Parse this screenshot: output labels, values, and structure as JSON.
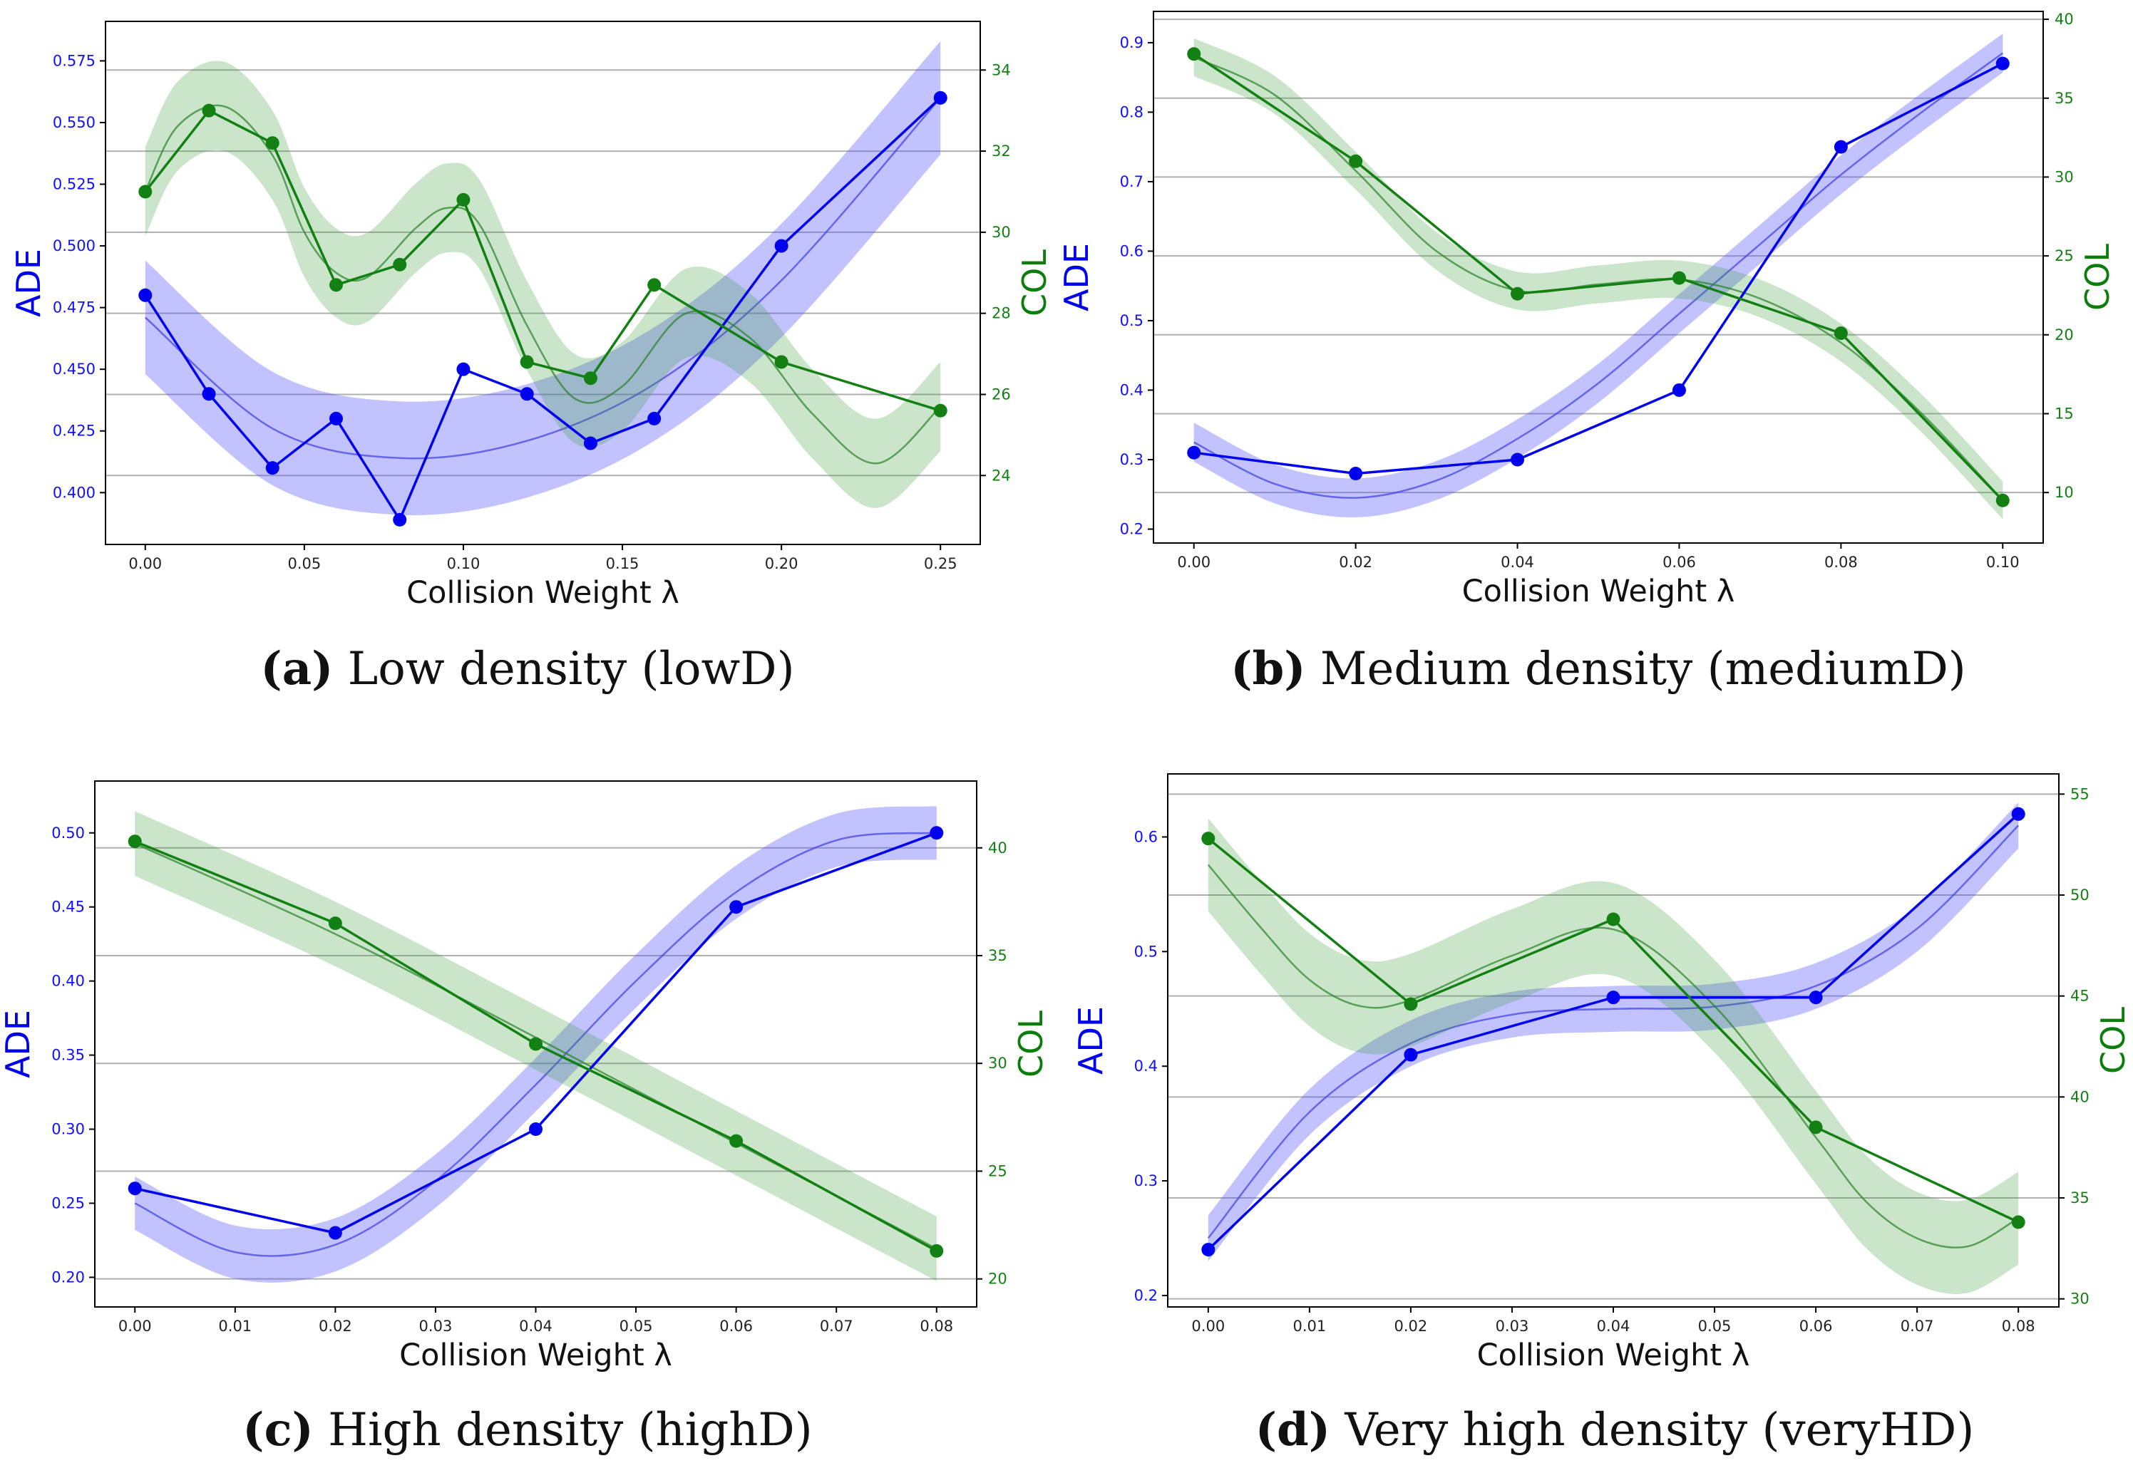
{
  "chart_data": [
    {
      "type": "line",
      "id": "a",
      "caption_tag": "(a)",
      "caption_text": "Low density (lowD)",
      "xlabel": "Collision Weight λ",
      "ylabel_left": "ADE",
      "ylabel_right": "COL",
      "xlim": [
        -0.0125,
        0.2625
      ],
      "xticks": [
        0.0,
        0.05,
        0.1,
        0.15,
        0.2,
        0.25
      ],
      "xtick_labels": [
        "0.00",
        "0.05",
        "0.10",
        "0.15",
        "0.20",
        "0.25"
      ],
      "ylim_left": [
        0.379,
        0.591
      ],
      "yticks_left": [
        0.4,
        0.425,
        0.45,
        0.475,
        0.5,
        0.525,
        0.55,
        0.575
      ],
      "ytick_labels_left": [
        "0.400",
        "0.425",
        "0.450",
        "0.475",
        "0.500",
        "0.525",
        "0.550",
        "0.575"
      ],
      "ylim_right": [
        22.3,
        35.2
      ],
      "yticks_right": [
        24,
        26,
        28,
        30,
        32,
        34
      ],
      "ytick_labels_right": [
        "24",
        "26",
        "28",
        "30",
        "32",
        "34"
      ],
      "series": [
        {
          "name": "ADE",
          "axis": "left",
          "color": "#0000ee",
          "x": [
            0.0,
            0.02,
            0.04,
            0.06,
            0.08,
            0.1,
            0.12,
            0.14,
            0.16,
            0.2,
            0.25
          ],
          "y": [
            0.48,
            0.44,
            0.41,
            0.43,
            0.389,
            0.45,
            0.44,
            0.42,
            0.43,
            0.5,
            0.56
          ],
          "fit_x": [
            0.0,
            0.04,
            0.08,
            0.12,
            0.16,
            0.2,
            0.25
          ],
          "fit_y": [
            0.471,
            0.426,
            0.414,
            0.421,
            0.444,
            0.486,
            0.56
          ],
          "band_half_width": 0.023
        },
        {
          "name": "COL",
          "axis": "right",
          "color": "#138013",
          "x": [
            0.0,
            0.02,
            0.04,
            0.06,
            0.08,
            0.1,
            0.12,
            0.14,
            0.16,
            0.2,
            0.25
          ],
          "y": [
            31.0,
            33.0,
            32.2,
            28.7,
            29.2,
            30.8,
            26.8,
            26.4,
            28.7,
            26.8,
            25.6
          ],
          "fit_x": [
            0.0,
            0.01,
            0.025,
            0.04,
            0.05,
            0.06,
            0.07,
            0.085,
            0.095,
            0.105,
            0.12,
            0.135,
            0.15,
            0.17,
            0.19,
            0.21,
            0.23,
            0.25
          ],
          "fit_y": [
            31.0,
            32.6,
            33.1,
            31.9,
            30.0,
            29.0,
            28.9,
            30.1,
            30.6,
            30.2,
            27.7,
            25.9,
            26.2,
            28.0,
            27.4,
            25.5,
            24.3,
            25.7
          ],
          "band_half_width": 1.1
        }
      ]
    },
    {
      "type": "line",
      "id": "b",
      "caption_tag": "(b)",
      "caption_text": "Medium density (mediumD)",
      "xlabel": "Collision Weight λ",
      "ylabel_left": "ADE",
      "ylabel_right": "COL",
      "xlim": [
        -0.005,
        0.105
      ],
      "xticks": [
        0.0,
        0.02,
        0.04,
        0.06,
        0.08,
        0.1
      ],
      "xtick_labels": [
        "0.00",
        "0.02",
        "0.04",
        "0.06",
        "0.08",
        "0.10"
      ],
      "ylim_left": [
        0.18,
        0.945
      ],
      "yticks_left": [
        0.2,
        0.3,
        0.4,
        0.5,
        0.6,
        0.7,
        0.8,
        0.9
      ],
      "ytick_labels_left": [
        "0.2",
        "0.3",
        "0.4",
        "0.5",
        "0.6",
        "0.7",
        "0.8",
        "0.9"
      ],
      "ylim_right": [
        6.8,
        40.5
      ],
      "yticks_right": [
        10,
        15,
        20,
        25,
        30,
        35,
        40
      ],
      "ytick_labels_right": [
        "10",
        "15",
        "20",
        "25",
        "30",
        "35",
        "40"
      ],
      "series": [
        {
          "name": "ADE",
          "axis": "left",
          "color": "#0000ee",
          "x": [
            0.0,
            0.02,
            0.04,
            0.06,
            0.08,
            0.1
          ],
          "y": [
            0.31,
            0.28,
            0.3,
            0.4,
            0.75,
            0.87
          ],
          "fit_x": [
            0.0,
            0.01,
            0.02,
            0.03,
            0.04,
            0.05,
            0.06,
            0.07,
            0.08,
            0.09,
            0.1
          ],
          "fit_y": [
            0.325,
            0.265,
            0.245,
            0.27,
            0.33,
            0.41,
            0.51,
            0.61,
            0.71,
            0.8,
            0.885
          ],
          "band_half_width": 0.028
        },
        {
          "name": "COL",
          "axis": "right",
          "color": "#138013",
          "x": [
            0.0,
            0.02,
            0.04,
            0.06,
            0.08,
            0.1
          ],
          "y": [
            37.8,
            31.0,
            22.6,
            23.6,
            20.1,
            9.5
          ],
          "fit_x": [
            0.0,
            0.01,
            0.02,
            0.03,
            0.04,
            0.05,
            0.06,
            0.07,
            0.08,
            0.09,
            0.1
          ],
          "fit_y": [
            37.6,
            35.2,
            30.4,
            25.3,
            22.8,
            23.2,
            23.5,
            22.3,
            19.5,
            15.0,
            9.5
          ],
          "band_half_width": 1.2
        }
      ]
    },
    {
      "type": "line",
      "id": "c",
      "caption_tag": "(c)",
      "caption_text": "High density (highD)",
      "xlabel": "Collision Weight λ",
      "ylabel_left": "ADE",
      "ylabel_right": "COL",
      "xlim": [
        -0.004,
        0.084
      ],
      "xticks": [
        0.0,
        0.01,
        0.02,
        0.03,
        0.04,
        0.05,
        0.06,
        0.07,
        0.08
      ],
      "xtick_labels": [
        "0.00",
        "0.01",
        "0.02",
        "0.03",
        "0.04",
        "0.05",
        "0.06",
        "0.07",
        "0.08"
      ],
      "ylim_left": [
        0.18,
        0.535
      ],
      "yticks_left": [
        0.2,
        0.25,
        0.3,
        0.35,
        0.4,
        0.45,
        0.5
      ],
      "ytick_labels_left": [
        "0.20",
        "0.25",
        "0.30",
        "0.35",
        "0.40",
        "0.45",
        "0.50"
      ],
      "ylim_right": [
        18.7,
        43.1
      ],
      "yticks_right": [
        20,
        25,
        30,
        35,
        40
      ],
      "ytick_labels_right": [
        "20",
        "25",
        "30",
        "35",
        "40"
      ],
      "series": [
        {
          "name": "ADE",
          "axis": "left",
          "color": "#0000ee",
          "x": [
            0.0,
            0.02,
            0.04,
            0.06,
            0.08
          ],
          "y": [
            0.26,
            0.23,
            0.3,
            0.45,
            0.5
          ],
          "fit_x": [
            0.0,
            0.01,
            0.02,
            0.03,
            0.04,
            0.05,
            0.06,
            0.07,
            0.08
          ],
          "fit_y": [
            0.25,
            0.217,
            0.222,
            0.265,
            0.33,
            0.4,
            0.46,
            0.495,
            0.5
          ],
          "band_half_width": 0.018
        },
        {
          "name": "COL",
          "axis": "right",
          "color": "#138013",
          "x": [
            0.0,
            0.02,
            0.04,
            0.06,
            0.08
          ],
          "y": [
            40.3,
            36.5,
            30.9,
            26.4,
            21.3
          ],
          "fit_x": [
            0.0,
            0.02,
            0.04,
            0.06,
            0.08
          ],
          "fit_y": [
            40.2,
            36.0,
            31.2,
            26.3,
            21.4
          ],
          "band_half_width": 1.5
        }
      ]
    },
    {
      "type": "line",
      "id": "d",
      "caption_tag": "(d)",
      "caption_text": "Very high density (veryHD)",
      "xlabel": "Collision Weight λ",
      "ylabel_left": "ADE",
      "ylabel_right": "COL",
      "xlim": [
        -0.004,
        0.084
      ],
      "xticks": [
        0.0,
        0.01,
        0.02,
        0.03,
        0.04,
        0.05,
        0.06,
        0.07,
        0.08
      ],
      "xtick_labels": [
        "0.00",
        "0.01",
        "0.02",
        "0.03",
        "0.04",
        "0.05",
        "0.06",
        "0.07",
        "0.08"
      ],
      "ylim_left": [
        0.19,
        0.655
      ],
      "yticks_left": [
        0.2,
        0.3,
        0.4,
        0.5,
        0.6
      ],
      "ytick_labels_left": [
        "0.2",
        "0.3",
        "0.4",
        "0.5",
        "0.6"
      ],
      "ylim_right": [
        29.6,
        56.0
      ],
      "yticks_right": [
        30,
        35,
        40,
        45,
        50,
        55
      ],
      "ytick_labels_right": [
        "30",
        "35",
        "40",
        "45",
        "50",
        "55"
      ],
      "series": [
        {
          "name": "ADE",
          "axis": "left",
          "color": "#0000ee",
          "x": [
            0.0,
            0.02,
            0.04,
            0.06,
            0.08
          ],
          "y": [
            0.24,
            0.41,
            0.46,
            0.46,
            0.62
          ],
          "fit_x": [
            0.0,
            0.01,
            0.02,
            0.03,
            0.04,
            0.05,
            0.06,
            0.07,
            0.08
          ],
          "fit_y": [
            0.25,
            0.36,
            0.42,
            0.445,
            0.45,
            0.452,
            0.47,
            0.52,
            0.61
          ],
          "band_half_width": 0.02
        },
        {
          "name": "COL",
          "axis": "right",
          "color": "#138013",
          "x": [
            0.0,
            0.02,
            0.04,
            0.06,
            0.08
          ],
          "y": [
            52.8,
            44.6,
            48.8,
            38.5,
            33.8
          ],
          "fit_x": [
            0.0,
            0.005,
            0.01,
            0.015,
            0.02,
            0.03,
            0.04,
            0.05,
            0.06,
            0.065,
            0.07,
            0.075,
            0.08
          ],
          "fit_y": [
            51.5,
            48.5,
            45.8,
            44.5,
            44.8,
            47.0,
            48.3,
            44.5,
            38.0,
            34.8,
            33.0,
            32.6,
            34.0
          ],
          "band_half_width": 2.3
        }
      ]
    }
  ]
}
